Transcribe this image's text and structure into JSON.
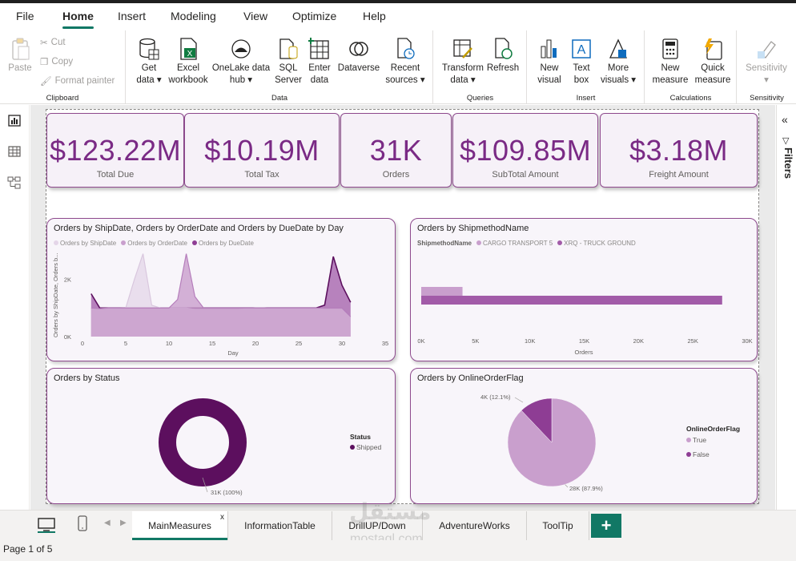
{
  "menu": {
    "items": [
      "File",
      "Home",
      "Insert",
      "Modeling",
      "View",
      "Optimize",
      "Help"
    ],
    "active": "Home"
  },
  "ribbon": {
    "clipboard": {
      "label": "Clipboard",
      "paste": "Paste",
      "cut": "Cut",
      "copy": "Copy",
      "format_painter": "Format painter"
    },
    "data": {
      "label": "Data",
      "get_data": [
        "Get",
        "data"
      ],
      "excel": [
        "Excel",
        "workbook"
      ],
      "onelake": [
        "OneLake data",
        "hub"
      ],
      "sql": [
        "SQL",
        "Server"
      ],
      "enter": [
        "Enter",
        "data"
      ],
      "dataverse": [
        "Dataverse"
      ],
      "recent": [
        "Recent",
        "sources"
      ]
    },
    "queries": {
      "label": "Queries",
      "transform": [
        "Transform",
        "data"
      ],
      "refresh": [
        "Refresh"
      ]
    },
    "insert": {
      "label": "Insert",
      "new_visual": [
        "New",
        "visual"
      ],
      "text_box": [
        "Text",
        "box"
      ],
      "more_visuals": [
        "More",
        "visuals"
      ]
    },
    "calculations": {
      "label": "Calculations",
      "new_measure": [
        "New",
        "measure"
      ],
      "quick_measure": [
        "Quick",
        "measure"
      ]
    },
    "sensitivity": {
      "label": "Sensitivity",
      "button": [
        "Sensitivity"
      ]
    }
  },
  "cards": [
    {
      "value": "$123.22M",
      "label": "Total Due"
    },
    {
      "value": "$10.19M",
      "label": "Total Tax"
    },
    {
      "value": "31K",
      "label": "Orders"
    },
    {
      "value": "$109.85M",
      "label": "SubTotal Amount"
    },
    {
      "value": "$3.18M",
      "label": "Freight Amount"
    }
  ],
  "right_pane": {
    "label": "Filters"
  },
  "tabs": [
    "MainMeasures",
    "InformationTable",
    "DrillUP/Down",
    "AdventureWorks",
    "ToolTip"
  ],
  "active_tab": "MainMeasures",
  "status": "Page 1 of 5",
  "watermark": {
    "arabic": "مستقل",
    "latin": "mostaql.com"
  },
  "colors": {
    "accent": "#117865",
    "purple_dark": "#5c0f5e",
    "purple_mid": "#a25ba8",
    "purple_light": "#c99fcd",
    "purple_pale": "#e4d5e8"
  },
  "chart_data": [
    {
      "type": "area",
      "title": "Orders by ShipDate, Orders by OrderDate and Orders by DueDate by Day",
      "xlabel": "Day",
      "ylabel": "Orders by ShipDate, Orders b...",
      "xlim": [
        0,
        35
      ],
      "x_ticks": [
        "0",
        "5",
        "10",
        "15",
        "20",
        "25",
        "30",
        "35"
      ],
      "y_ticks": [
        "0K",
        "2K"
      ],
      "ylim": [
        0,
        3000
      ],
      "legend": [
        "Orders by ShipDate",
        "Orders by OrderDate",
        "Orders by DueDate"
      ],
      "x": [
        1,
        2,
        3,
        4,
        5,
        6,
        7,
        8,
        9,
        10,
        11,
        12,
        13,
        14,
        15,
        16,
        17,
        18,
        19,
        20,
        21,
        22,
        23,
        24,
        25,
        26,
        27,
        28,
        29,
        30,
        31
      ],
      "series": [
        {
          "name": "Orders by ShipDate",
          "values": [
            1000,
            950,
            980,
            990,
            1000,
            2000,
            2900,
            1100,
            1000,
            1000,
            1000,
            1000,
            950,
            950,
            950,
            950,
            950,
            950,
            980,
            1000,
            1000,
            980,
            980,
            980,
            980,
            980,
            980,
            950,
            950,
            950,
            650
          ]
        },
        {
          "name": "Orders by OrderDate",
          "values": [
            1000,
            980,
            1000,
            1000,
            1000,
            1000,
            1000,
            1000,
            1000,
            1000,
            1300,
            2900,
            1400,
            1000,
            1000,
            1000,
            1000,
            1000,
            1000,
            1000,
            1000,
            1000,
            1000,
            1000,
            1000,
            1000,
            1000,
            1000,
            1000,
            1000,
            700
          ]
        },
        {
          "name": "Orders by DueDate",
          "values": [
            1500,
            1000,
            1000,
            1000,
            1000,
            1000,
            1000,
            1000,
            1000,
            1000,
            1000,
            1000,
            1000,
            1000,
            1000,
            1000,
            1000,
            1000,
            1000,
            1000,
            1000,
            1000,
            1000,
            1000,
            1000,
            1000,
            1000,
            1100,
            2800,
            1800,
            1200
          ]
        }
      ]
    },
    {
      "type": "bar",
      "title": "Orders by ShipmethodName",
      "legend_title": "ShipmethodName",
      "legend": [
        "CARGO TRANSPORT 5",
        "XRQ - TRUCK GROUND"
      ],
      "xlabel": "Orders",
      "x_ticks": [
        "0K",
        "5K",
        "10K",
        "15K",
        "20K",
        "25K",
        "30K"
      ],
      "xlim": [
        0,
        30000
      ],
      "series": [
        {
          "name": "CARGO TRANSPORT 5",
          "values": [
            3800
          ]
        },
        {
          "name": "XRQ - TRUCK GROUND",
          "values": [
            27700
          ]
        }
      ]
    },
    {
      "type": "pie",
      "title": "Orders by Status",
      "legend_title": "Status",
      "legend": [
        "Shipped"
      ],
      "slices": [
        {
          "name": "Shipped",
          "value": 31000,
          "label": "31K (100%)"
        }
      ]
    },
    {
      "type": "pie",
      "title": "Orders by OnlineOrderFlag",
      "legend_title": "OnlineOrderFlag",
      "legend": [
        "True",
        "False"
      ],
      "slices": [
        {
          "name": "True",
          "value": 27659,
          "label": "28K (87.9%)"
        },
        {
          "name": "False",
          "value": 3806,
          "label": "4K (12.1%)"
        }
      ]
    }
  ]
}
